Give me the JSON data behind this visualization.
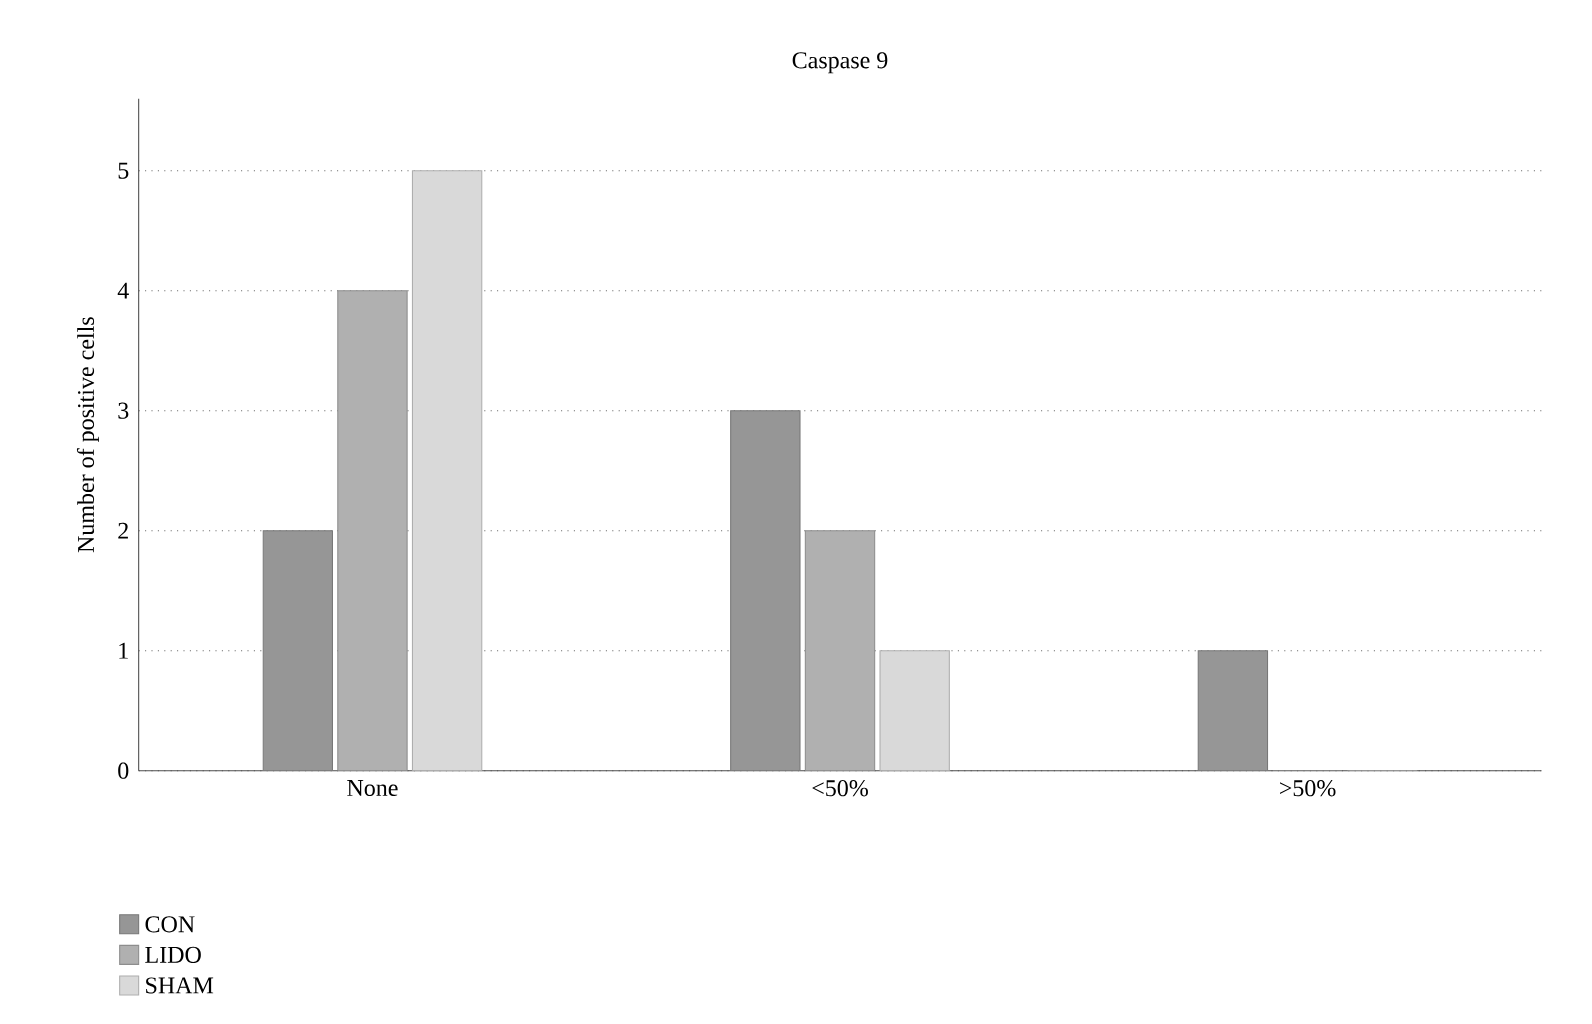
{
  "chart_data": {
    "type": "bar",
    "title": "Caspase 9",
    "ylabel": "Number of positive cells",
    "categories": [
      "None",
      "<50%",
      ">50%"
    ],
    "series": [
      {
        "name": "CON",
        "color": "#969696",
        "values": [
          2,
          3,
          1
        ]
      },
      {
        "name": "LIDO",
        "color": "#b0b0b0",
        "values": [
          4,
          2,
          0
        ]
      },
      {
        "name": "SHAM",
        "color": "#d9d9d9",
        "values": [
          5,
          1,
          0
        ]
      }
    ],
    "ylim": [
      0,
      5.6
    ],
    "yticks": [
      0,
      1,
      2,
      3,
      4,
      5
    ],
    "grid": "y",
    "legend": "bottom left"
  }
}
